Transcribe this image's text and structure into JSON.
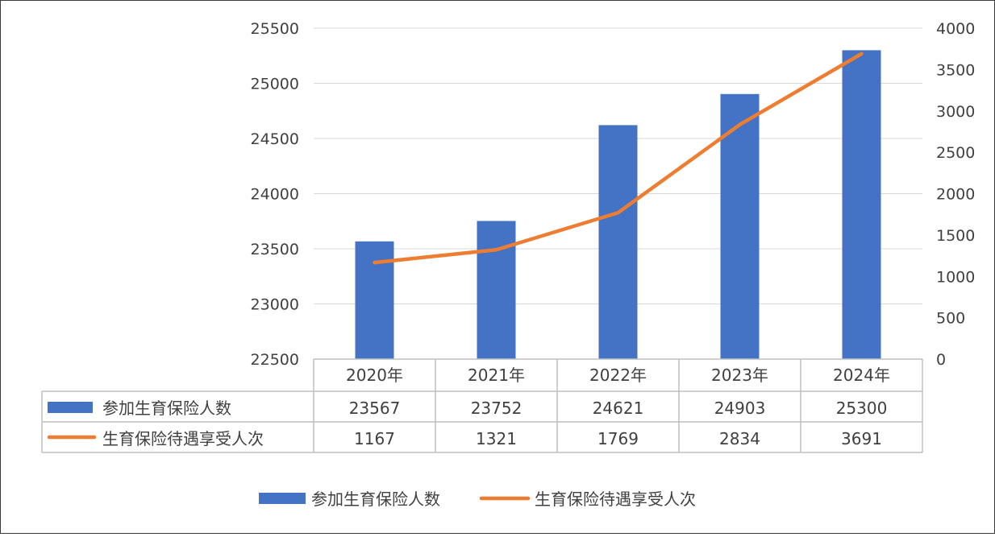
{
  "chart_data": {
    "type": "bar",
    "title": "",
    "categories": [
      "2020年",
      "2021年",
      "2022年",
      "2023年",
      "2024年"
    ],
    "series": [
      {
        "name": "参加生育保险人数",
        "type": "bar",
        "axis": "left",
        "values": [
          23567,
          23752,
          24621,
          24903,
          25300
        ]
      },
      {
        "name": "生育保险待遇享受人次",
        "type": "line",
        "axis": "right",
        "values": [
          1167,
          1321,
          1769,
          2834,
          3691
        ]
      }
    ],
    "y_left": {
      "min": 22500,
      "max": 25500,
      "ticks": [
        22500,
        23000,
        23500,
        24000,
        24500,
        25000,
        25500
      ]
    },
    "y_right": {
      "min": 0,
      "max": 4000,
      "ticks": [
        0,
        500,
        1000,
        1500,
        2000,
        2500,
        3000,
        3500,
        4000
      ]
    },
    "grid": true,
    "data_table": true,
    "legend_position": "bottom",
    "colors": {
      "bar": "#4472c4",
      "line": "#ed7d31",
      "grid": "#d9d9d9",
      "text": "#404040"
    }
  }
}
